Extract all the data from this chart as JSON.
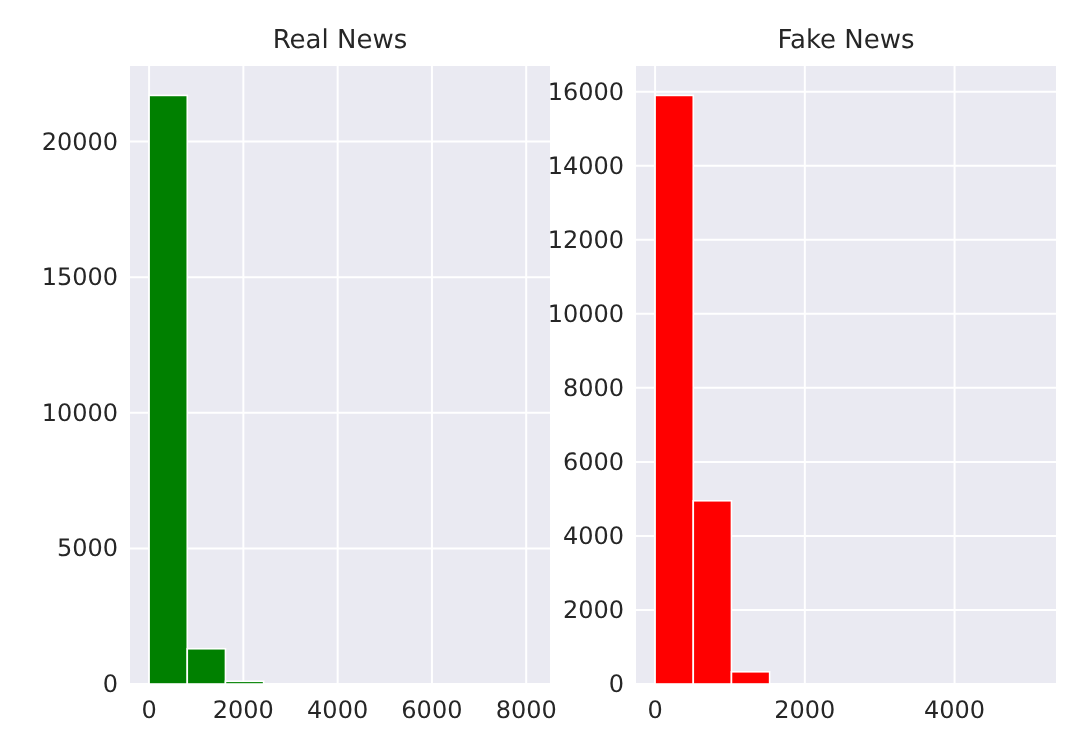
{
  "chart_data": [
    {
      "type": "histogram",
      "title": "Real News",
      "bins": [
        0,
        810,
        1620,
        2430,
        3240,
        4050,
        4860,
        5670,
        6480,
        7290,
        8100
      ],
      "values": [
        21700,
        1300,
        100,
        null,
        0,
        0,
        0,
        0,
        0,
        0
      ],
      "color": "#008000",
      "xlim": [
        -405,
        8505
      ],
      "xticks": [
        0,
        2000,
        4000,
        6000,
        8000
      ],
      "ylim": [
        0,
        22785
      ],
      "yticks": [
        0,
        5000,
        10000,
        15000,
        20000
      ],
      "grid": true
    },
    {
      "type": "histogram",
      "title": "Fake News",
      "bins": [
        0,
        510,
        1020,
        1530,
        2040,
        2550,
        3060,
        3570,
        4080,
        4590,
        5100
      ],
      "values": [
        15900,
        4950,
        330,
        0,
        0,
        0,
        0,
        0,
        0,
        0
      ],
      "color": "#ff0000",
      "xlim": [
        -255,
        5355
      ],
      "xticks": [
        0,
        2000,
        4000
      ],
      "ylim": [
        0,
        16695
      ],
      "yticks": [
        0,
        2000,
        4000,
        6000,
        8000,
        10000,
        12000,
        14000,
        16000
      ],
      "grid": true
    }
  ]
}
